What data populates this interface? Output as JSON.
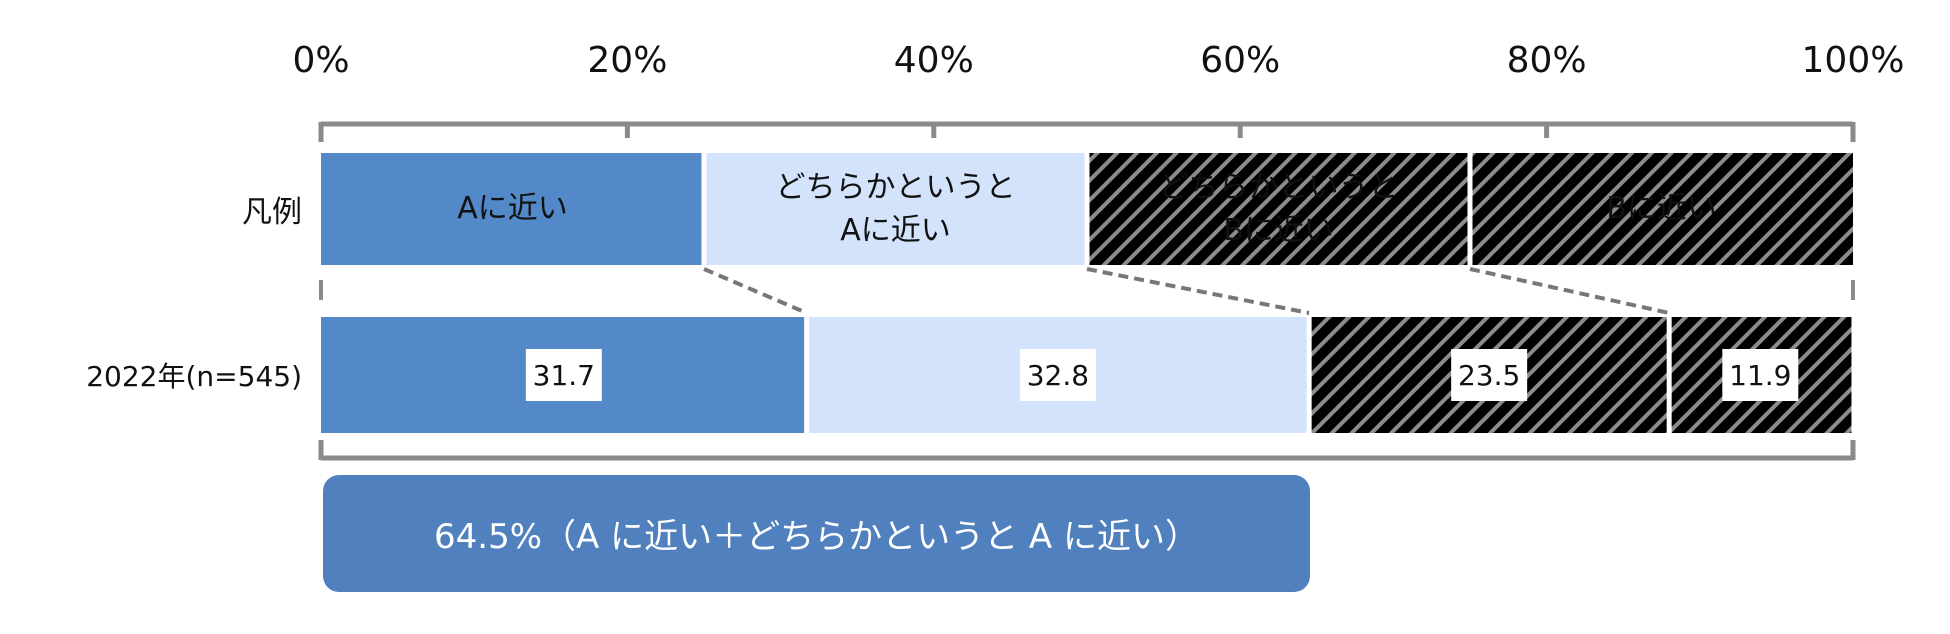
{
  "chart_data": {
    "type": "stacked-bar-100",
    "legend_label": "凡例",
    "categories": [
      "2022年(n=545)"
    ],
    "series": [
      {
        "name": "Aに近い",
        "color": "#5389c8",
        "hatch": false,
        "values": [
          31.7
        ]
      },
      {
        "name": "どちらかというと\nAに近い",
        "color": "#d3e3fc",
        "hatch": false,
        "values": [
          32.8
        ]
      },
      {
        "name": "どちらかというと\nBに近い",
        "color": "#f7ad98",
        "hatch": true,
        "values": [
          23.5
        ]
      },
      {
        "name": "Bに近い",
        "color": "#ff7b5a",
        "hatch": true,
        "values": [
          11.9
        ]
      }
    ],
    "xlim": [
      0,
      100
    ],
    "xticks": [
      {
        "value": 0,
        "label": "0%"
      },
      {
        "value": 20,
        "label": "20%"
      },
      {
        "value": 40,
        "label": "40%"
      },
      {
        "value": 60,
        "label": "60%"
      },
      {
        "value": 80,
        "label": "80%"
      },
      {
        "value": 100,
        "label": "100%"
      }
    ],
    "annotation": "64.5%（A に近い＋どちらかというと A に近い）",
    "annotation_color": "#5080bd",
    "frame_color": "#8a8a8a"
  }
}
